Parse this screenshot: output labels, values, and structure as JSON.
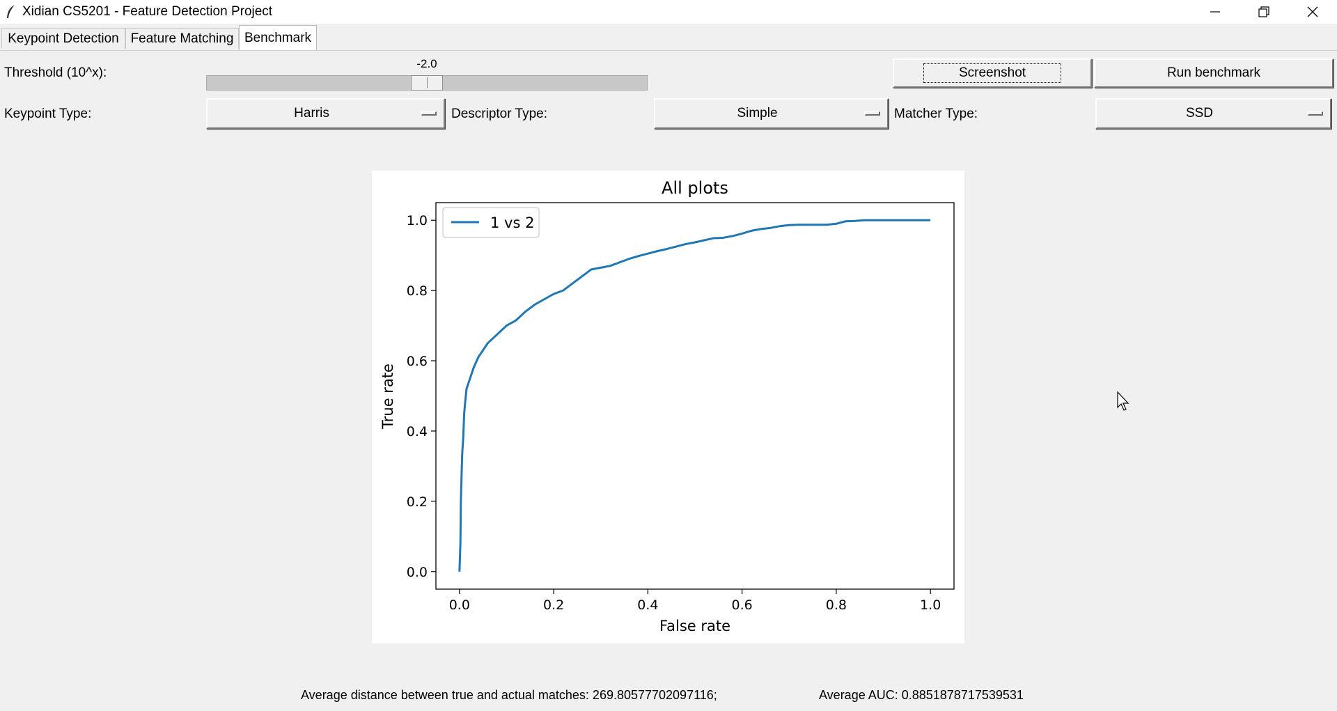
{
  "window": {
    "title": "Xidian CS5201 - Feature Detection Project",
    "controls": [
      "minimize-icon",
      "restore-icon",
      "close-icon"
    ]
  },
  "tabs": [
    {
      "label": "Keypoint Detection",
      "active": false
    },
    {
      "label": "Feature Matching",
      "active": false
    },
    {
      "label": "Benchmark",
      "active": true
    }
  ],
  "controls": {
    "threshold_label": "Threshold (10^x):",
    "threshold_value": "-2.0",
    "threshold_fraction": 0.5,
    "screenshot_label": "Screenshot",
    "run_benchmark_label": "Run benchmark",
    "keypoint_type_label": "Keypoint Type:",
    "keypoint_type_value": "Harris",
    "descriptor_type_label": "Descriptor Type:",
    "descriptor_type_value": "Simple",
    "matcher_type_label": "Matcher Type:",
    "matcher_type_value": "SSD"
  },
  "chart_data": {
    "type": "line",
    "title": "All plots",
    "xlabel": "False rate",
    "ylabel": "True rate",
    "xlim": [
      -0.05,
      1.05
    ],
    "ylim": [
      -0.05,
      1.05
    ],
    "xticks": [
      "0.0",
      "0.2",
      "0.4",
      "0.6",
      "0.8",
      "1.0"
    ],
    "yticks": [
      "0.0",
      "0.2",
      "0.4",
      "0.6",
      "0.8",
      "1.0"
    ],
    "grid": false,
    "legend_position": "top-left",
    "series": [
      {
        "name": "1 vs 2",
        "color": "#1f77b4",
        "x": [
          0.0,
          0.002,
          0.003,
          0.005,
          0.006,
          0.008,
          0.01,
          0.012,
          0.015,
          0.02,
          0.03,
          0.04,
          0.06,
          0.08,
          0.1,
          0.12,
          0.14,
          0.16,
          0.18,
          0.2,
          0.22,
          0.24,
          0.26,
          0.28,
          0.3,
          0.32,
          0.34,
          0.36,
          0.38,
          0.4,
          0.42,
          0.44,
          0.46,
          0.48,
          0.5,
          0.52,
          0.54,
          0.56,
          0.58,
          0.6,
          0.62,
          0.64,
          0.66,
          0.68,
          0.7,
          0.72,
          0.74,
          0.76,
          0.78,
          0.8,
          0.82,
          0.84,
          0.86,
          0.9,
          0.95,
          1.0
        ],
        "y": [
          0.0,
          0.08,
          0.2,
          0.3,
          0.34,
          0.38,
          0.45,
          0.48,
          0.52,
          0.54,
          0.58,
          0.61,
          0.65,
          0.675,
          0.7,
          0.715,
          0.74,
          0.76,
          0.775,
          0.79,
          0.8,
          0.82,
          0.84,
          0.86,
          0.865,
          0.87,
          0.88,
          0.89,
          0.898,
          0.905,
          0.912,
          0.918,
          0.925,
          0.932,
          0.937,
          0.943,
          0.949,
          0.95,
          0.955,
          0.962,
          0.97,
          0.975,
          0.978,
          0.983,
          0.986,
          0.987,
          0.987,
          0.987,
          0.987,
          0.99,
          0.997,
          0.998,
          1.0,
          1.0,
          1.0,
          1.0
        ]
      }
    ]
  },
  "status": {
    "avg_distance": "Average distance between true and actual matches: 269.80577702097116;",
    "avg_auc": "Average AUC: 0.8851878717539531"
  }
}
